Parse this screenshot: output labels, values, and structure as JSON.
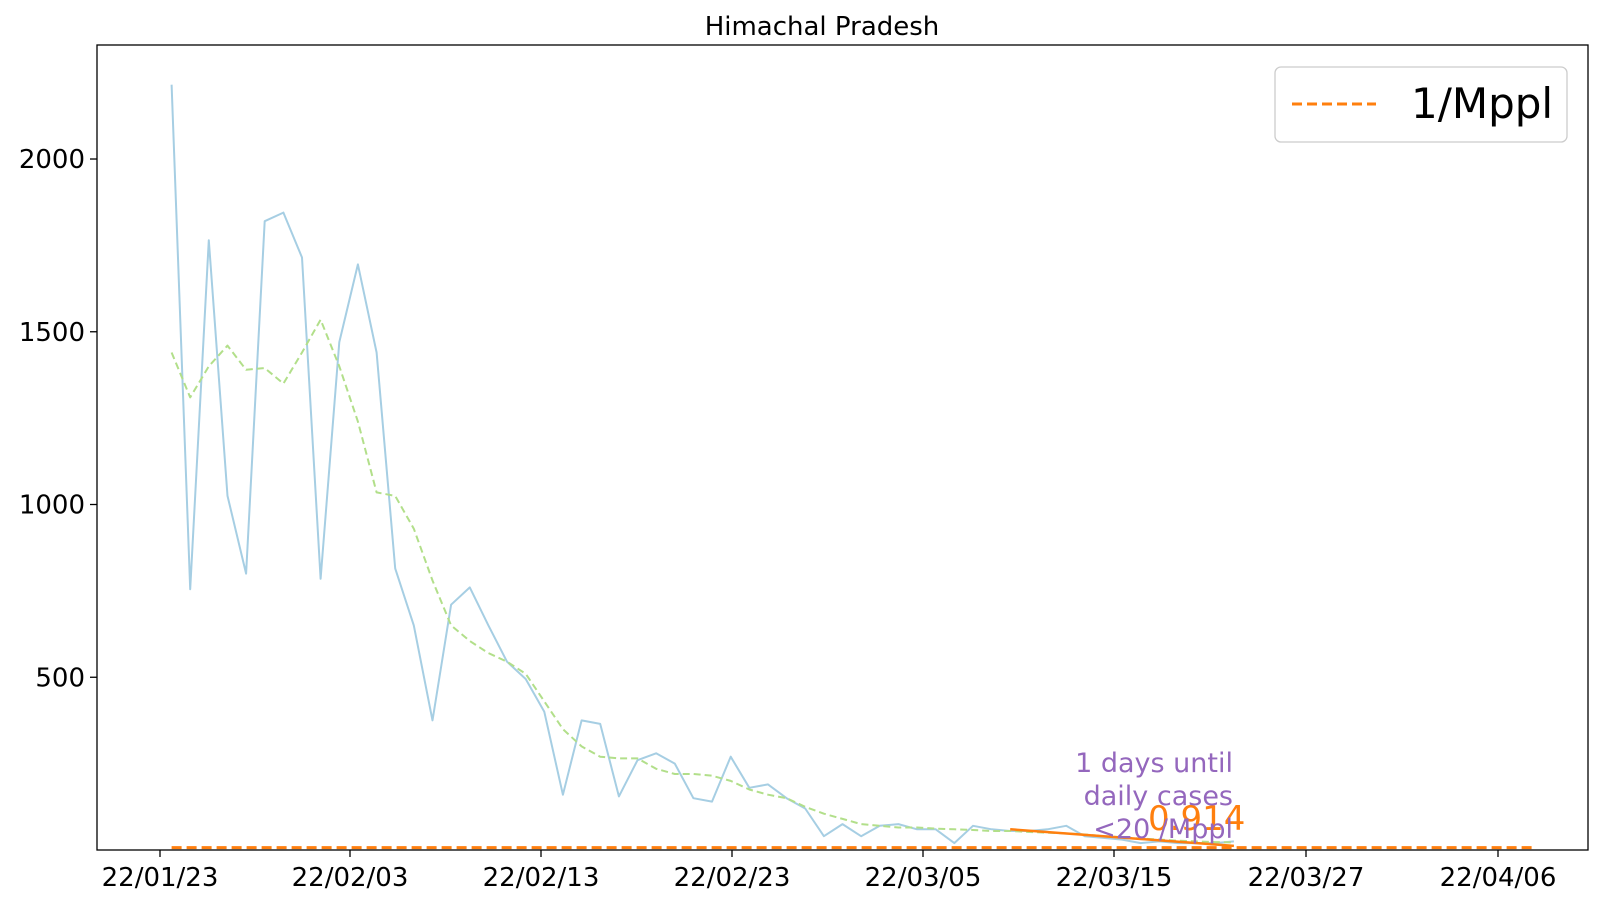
{
  "chart_data": {
    "type": "line",
    "title": "Himachal Pradesh",
    "xlabel": "",
    "ylabel": "",
    "x_tick_labels": [
      "22/01/23",
      "22/02/03",
      "22/02/13",
      "22/02/23",
      "22/03/05",
      "22/03/15",
      "22/03/27",
      "22/04/06"
    ],
    "y_ticks": [
      500,
      1000,
      1500,
      2000
    ],
    "ylim": [
      0,
      2330
    ],
    "xlim": [
      "2022-01-19",
      "2022-04-09"
    ],
    "grid": false,
    "legend": {
      "position": "top-right",
      "entries": [
        {
          "label": "1/Mppl",
          "color": "#ff7f0e",
          "style": "dashed"
        }
      ]
    },
    "series": [
      {
        "kind": "daily",
        "color": "#a6cee3",
        "style": "solid",
        "x": [
          "2022-01-23",
          "2022-01-24",
          "2022-01-25",
          "2022-01-26",
          "2022-01-27",
          "2022-01-28",
          "2022-01-29",
          "2022-01-30",
          "2022-01-31",
          "2022-02-01",
          "2022-02-02",
          "2022-02-03",
          "2022-02-04",
          "2022-02-05",
          "2022-02-06",
          "2022-02-07",
          "2022-02-08",
          "2022-02-09",
          "2022-02-10",
          "2022-02-11",
          "2022-02-12",
          "2022-02-13",
          "2022-02-14",
          "2022-02-15",
          "2022-02-16",
          "2022-02-17",
          "2022-02-18",
          "2022-02-19",
          "2022-02-20",
          "2022-02-21",
          "2022-02-22",
          "2022-02-23",
          "2022-02-24",
          "2022-02-25",
          "2022-02-26",
          "2022-02-27",
          "2022-02-28",
          "2022-03-01",
          "2022-03-02",
          "2022-03-03",
          "2022-03-04",
          "2022-03-05",
          "2022-03-06",
          "2022-03-07",
          "2022-03-08",
          "2022-03-09",
          "2022-03-10",
          "2022-03-11",
          "2022-03-12",
          "2022-03-13",
          "2022-03-14",
          "2022-03-15",
          "2022-03-16",
          "2022-03-17",
          "2022-03-18",
          "2022-03-19",
          "2022-03-20",
          "2022-03-21"
        ],
        "values": [
          2215,
          755,
          1765,
          1025,
          800,
          1820,
          1845,
          1715,
          785,
          1470,
          1695,
          1440,
          815,
          650,
          375,
          710,
          760,
          650,
          545,
          495,
          400,
          160,
          375,
          365,
          155,
          260,
          280,
          250,
          150,
          140,
          270,
          180,
          190,
          150,
          120,
          40,
          75,
          40,
          70,
          75,
          60,
          60,
          20,
          70,
          60,
          55,
          55,
          60,
          70,
          40,
          35,
          30,
          20,
          25,
          20,
          20,
          20,
          25
        ]
      },
      {
        "kind": "7-day average",
        "color": "#b2df8a",
        "style": "dashed",
        "x": [
          "2022-01-23",
          "2022-01-24",
          "2022-01-25",
          "2022-01-26",
          "2022-01-27",
          "2022-01-28",
          "2022-01-29",
          "2022-01-30",
          "2022-01-31",
          "2022-02-01",
          "2022-02-02",
          "2022-02-03",
          "2022-02-04",
          "2022-02-05",
          "2022-02-06",
          "2022-02-07",
          "2022-02-08",
          "2022-02-09",
          "2022-02-10",
          "2022-02-11",
          "2022-02-12",
          "2022-02-13",
          "2022-02-14",
          "2022-02-15",
          "2022-02-16",
          "2022-02-17",
          "2022-02-18",
          "2022-02-19",
          "2022-02-20",
          "2022-02-21",
          "2022-02-22",
          "2022-02-23",
          "2022-02-24",
          "2022-02-25",
          "2022-02-26",
          "2022-02-27",
          "2022-02-28",
          "2022-03-01",
          "2022-03-02",
          "2022-03-03",
          "2022-03-04",
          "2022-03-05",
          "2022-03-06",
          "2022-03-07",
          "2022-03-08",
          "2022-03-09",
          "2022-03-10",
          "2022-03-11",
          "2022-03-12",
          "2022-03-13",
          "2022-03-14",
          "2022-03-15",
          "2022-03-16",
          "2022-03-17",
          "2022-03-18",
          "2022-03-19",
          "2022-03-20",
          "2022-03-21"
        ],
        "values": [
          1440,
          1310,
          1400,
          1460,
          1390,
          1395,
          1350,
          1440,
          1535,
          1400,
          1240,
          1035,
          1025,
          930,
          780,
          650,
          605,
          570,
          545,
          510,
          430,
          350,
          300,
          270,
          265,
          265,
          235,
          220,
          220,
          215,
          200,
          175,
          160,
          150,
          125,
          105,
          90,
          75,
          70,
          65,
          65,
          62,
          60,
          58,
          55,
          55,
          52,
          50,
          48,
          45,
          40,
          37,
          33,
          30,
          27,
          25,
          23,
          22
        ]
      },
      {
        "kind": "projection",
        "color": "#ff7f0e",
        "style": "solid",
        "x": [
          "2022-03-09",
          "2022-03-21"
        ],
        "values": [
          60,
          12
        ]
      },
      {
        "kind": "threshold",
        "name": "1/Mppl",
        "color": "#ff7f0e",
        "style": "dashed",
        "x": [
          "2022-01-23",
          "2022-04-06"
        ],
        "values": [
          7,
          7
        ]
      }
    ],
    "annotations": {
      "rate": {
        "text": "0.914",
        "color": "#ff7f0e"
      },
      "days_until": {
        "lines": [
          "1 days until",
          "daily cases",
          "<20 /Mppl"
        ],
        "color": "#9467bd"
      }
    }
  }
}
